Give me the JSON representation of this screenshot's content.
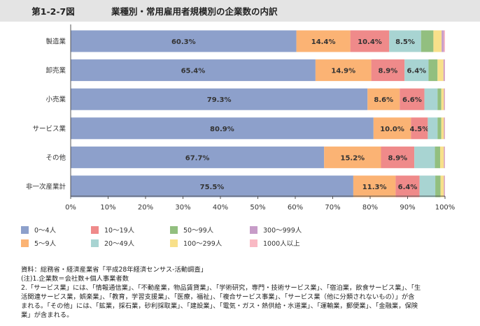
{
  "header": {
    "fig_label": "第1-2-7図",
    "title": "業種別・常用雇用者規模別の企業数の内訳"
  },
  "chart_data": {
    "type": "bar",
    "orientation": "horizontal",
    "stacked": true,
    "percent_stacked": true,
    "categories": [
      "製造業",
      "卸売業",
      "小売業",
      "サービス業",
      "その他",
      "非一次産業計"
    ],
    "xlim": [
      0,
      100
    ],
    "x_ticks": [
      "0%",
      "10%",
      "20%",
      "30%",
      "40%",
      "50%",
      "60%",
      "70%",
      "80%",
      "90%",
      "100%"
    ],
    "grid": false,
    "legend_position": "bottom",
    "series": [
      {
        "name": "0～4人",
        "color": "#8da0cb",
        "values": [
          60.3,
          65.4,
          79.3,
          80.9,
          67.7,
          75.5
        ],
        "labels": [
          "60.3%",
          "65.4%",
          "79.3%",
          "80.9%",
          "67.7%",
          "75.5%"
        ]
      },
      {
        "name": "5～9人",
        "color": "#fbb374",
        "values": [
          14.4,
          14.9,
          8.6,
          10.0,
          15.2,
          11.3
        ],
        "labels": [
          "14.4%",
          "14.9%",
          "8.6%",
          "10.0%",
          "15.2%",
          "11.3%"
        ]
      },
      {
        "name": "10～19人",
        "color": "#ef8a8a",
        "values": [
          10.4,
          8.9,
          6.6,
          4.5,
          8.9,
          6.4
        ],
        "labels": [
          "10.4%",
          "8.9%",
          "6.6%",
          "4.5%",
          "8.9%",
          "6.4%"
        ]
      },
      {
        "name": "20～49人",
        "color": "#a8d4d2",
        "values": [
          8.5,
          6.4,
          3.5,
          2.6,
          5.5,
          4.2
        ],
        "labels": [
          "8.5%",
          "6.4%",
          "",
          "",
          "",
          ""
        ]
      },
      {
        "name": "50～99人",
        "color": "#92bf7f",
        "values": [
          3.3,
          2.4,
          1.0,
          1.0,
          1.4,
          1.4
        ],
        "labels": [
          "",
          "",
          "",
          "",
          "",
          ""
        ]
      },
      {
        "name": "100～299人",
        "color": "#f8e08a",
        "values": [
          2.2,
          1.6,
          0.7,
          0.7,
          1.0,
          0.9
        ],
        "labels": [
          "",
          "",
          "",
          "",
          "",
          ""
        ]
      },
      {
        "name": "300～999人",
        "color": "#c79cc8",
        "values": [
          0.6,
          0.3,
          0.2,
          0.2,
          0.2,
          0.2
        ],
        "labels": [
          "",
          "",
          "",
          "",
          "",
          ""
        ]
      },
      {
        "name": "1000人以上",
        "color": "#f9b9c4",
        "values": [
          0.3,
          0.1,
          0.1,
          0.1,
          0.1,
          0.1
        ],
        "labels": [
          "",
          "",
          "",
          "",
          "",
          ""
        ]
      }
    ]
  },
  "notes": [
    "資料：総務省・経済産業省「平成28年経済センサス-活動調査」",
    "(注)1.企業数＝会社数+個人事業者数",
    "2.「サービス業」には、「情報通信業」、「不動産業，物品賃貸業」、「学術研究，専門・技術サービス業」、「宿泊業，飲食サービス業」、「生",
    "活関連サービス業，娯楽業」、「教育，学習支援業」、「医療，福祉」、「複合サービス事業」、「サービス業（他に分類されないもの）」が含",
    "まれる。「その他」には、「鉱業，採石業，砂利採取業」、「建設業」、「電気・ガス・熱供給・水道業」、「運輸業，郵便業」、「金融業，保険",
    "業」が含まれる。"
  ]
}
